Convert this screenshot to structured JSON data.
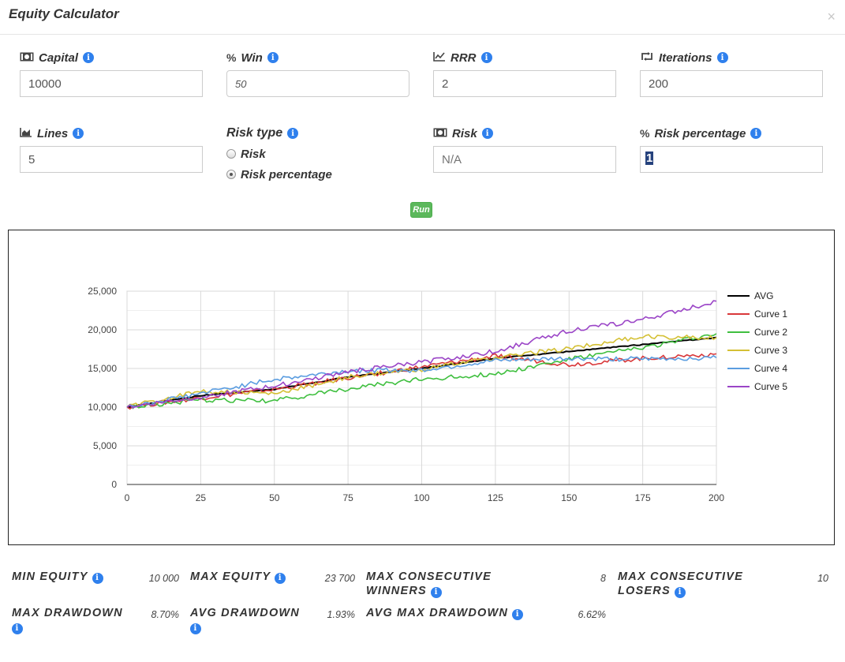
{
  "header": {
    "title": "Equity Calculator",
    "close": "×"
  },
  "fields": {
    "capital": {
      "label": "Capital",
      "value": "10000",
      "icon": "money-icon"
    },
    "win": {
      "label": "Win",
      "value": "50",
      "icon": "percent-icon"
    },
    "rrr": {
      "label": "RRR",
      "value": "2",
      "icon": "line-chart-icon"
    },
    "iterations": {
      "label": "Iterations",
      "value": "200",
      "icon": "retweet-icon"
    },
    "lines": {
      "label": "Lines",
      "value": "5",
      "icon": "area-chart-icon"
    },
    "risk_type": {
      "label": "Risk type",
      "options": [
        "Risk",
        "Risk percentage"
      ],
      "selected": "Risk percentage"
    },
    "risk": {
      "label": "Risk",
      "placeholder": "N/A",
      "icon": "money-icon"
    },
    "risk_percentage": {
      "label": "Risk percentage",
      "value": "1",
      "icon": "percent-icon"
    }
  },
  "run_label": "Run",
  "chart_data": {
    "type": "line",
    "title": "",
    "xlabel": "",
    "ylabel": "",
    "xlim": [
      0,
      200
    ],
    "ylim": [
      0,
      25000
    ],
    "x_ticks": [
      "0",
      "25",
      "50",
      "75",
      "100",
      "125",
      "150",
      "175",
      "200"
    ],
    "y_ticks": [
      "0",
      "5,000",
      "10,000",
      "15,000",
      "20,000",
      "25,000"
    ],
    "grid": true,
    "legend_position": "right",
    "x": [
      0,
      25,
      50,
      75,
      100,
      125,
      150,
      175,
      200
    ],
    "series": [
      {
        "name": "AVG",
        "color": "#000000",
        "values": [
          10000,
          11500,
          12300,
          13900,
          15000,
          16300,
          17200,
          18100,
          19000
        ]
      },
      {
        "name": "Curve 1",
        "color": "#d9383a",
        "values": [
          10000,
          11200,
          12300,
          13800,
          15200,
          16600,
          15500,
          16300,
          16900
        ]
      },
      {
        "name": "Curve 2",
        "color": "#3fbf3f",
        "values": [
          10000,
          10900,
          10800,
          12400,
          13600,
          14300,
          16200,
          17700,
          19500
        ]
      },
      {
        "name": "Curve 3",
        "color": "#d4c034",
        "values": [
          10000,
          12100,
          11700,
          13900,
          14900,
          16400,
          17600,
          19100,
          19000
        ]
      },
      {
        "name": "Curve 4",
        "color": "#5b9de0",
        "values": [
          10000,
          11800,
          13600,
          14700,
          14800,
          16000,
          16300,
          16200,
          16400
        ]
      },
      {
        "name": "Curve 5",
        "color": "#9b45c7",
        "values": [
          10000,
          11300,
          12700,
          14600,
          15800,
          17200,
          19900,
          21300,
          23700
        ]
      }
    ]
  },
  "stats": {
    "min_equity": {
      "label": "MIN EQUITY",
      "value": "10 000"
    },
    "max_equity": {
      "label": "MAX EQUITY",
      "value": "23 700"
    },
    "max_consec_winners": {
      "label_line1": "MAX CONSECUTIVE",
      "label_line2": "WINNERS",
      "value": "8"
    },
    "max_consec_losers": {
      "label_line1": "MAX CONSECUTIVE",
      "label_line2": "LOSERS",
      "value": "10"
    },
    "max_drawdown": {
      "label": "MAX DRAWDOWN",
      "value": "8.70%"
    },
    "avg_drawdown": {
      "label": "AVG DRAWDOWN",
      "value": "1.93%"
    },
    "avg_max_drawdown": {
      "label": "AVG MAX DRAWDOWN",
      "value": "6.62%"
    }
  }
}
